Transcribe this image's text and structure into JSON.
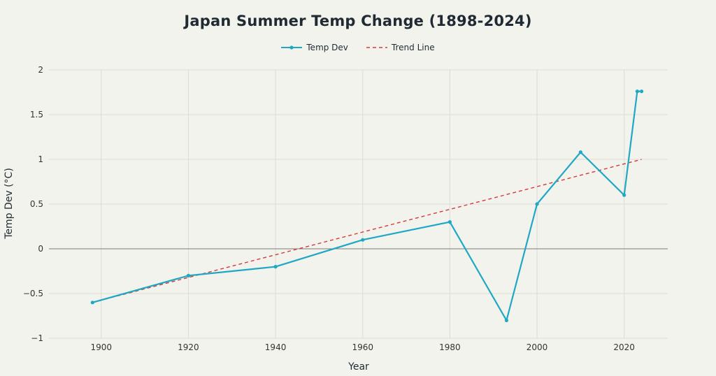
{
  "chart_data": {
    "type": "line",
    "title": "Japan Summer Temp Change (1898-2024)",
    "xlabel": "Year",
    "ylabel": "Temp Dev (°C)",
    "xlim": [
      1888,
      2030
    ],
    "ylim": [
      -1,
      2
    ],
    "x_ticks": [
      1900,
      1920,
      1940,
      1960,
      1980,
      2000,
      2020
    ],
    "y_ticks": [
      -1,
      -0.5,
      0,
      0.5,
      1,
      1.5,
      2
    ],
    "y_tick_labels": [
      "−1",
      "−0.5",
      "0",
      "0.5",
      "1",
      "1.5",
      "2"
    ],
    "grid": true,
    "legend_position": "top-center",
    "series": [
      {
        "name": "Temp Dev",
        "style": "solid-markers",
        "color": "#1fa8c4",
        "x": [
          1898,
          1920,
          1940,
          1960,
          1980,
          1993,
          2000,
          2010,
          2020,
          2023,
          2024
        ],
        "y": [
          -0.6,
          -0.3,
          -0.2,
          0.1,
          0.3,
          -0.8,
          0.5,
          1.08,
          0.6,
          1.76,
          1.76
        ]
      },
      {
        "name": "Trend Line",
        "style": "dashed",
        "color": "#d43a3a",
        "x": [
          1898,
          2024
        ],
        "y": [
          -0.6,
          1.0
        ]
      }
    ]
  }
}
